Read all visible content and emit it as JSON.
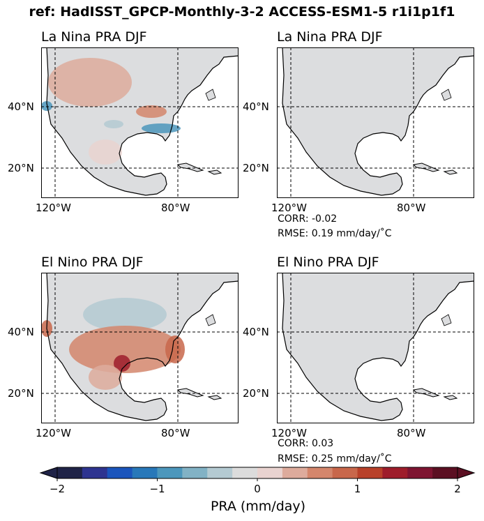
{
  "suptitle": "ref: HadISST_GPCP-Monthly-3-2 ACCESS-ESM1-5 r1i1p1f1",
  "chart_data": [
    {
      "type": "heatmap",
      "title": "La Nina PRA DJF",
      "x_ticks": [
        "120°W",
        "80°W"
      ],
      "y_ticks": [
        "40°N",
        "20°N"
      ],
      "field": "reference",
      "anomalies": [
        {
          "region": "western Canada / northern US",
          "value": 0.3
        },
        {
          "region": "Pacific Northwest coast",
          "value": -1.0
        },
        {
          "region": "lower Mississippi valley",
          "value": 0.6
        },
        {
          "region": "Gulf coast / southeast US",
          "value": -0.9
        },
        {
          "region": "southern Great Plains",
          "value": -0.4
        },
        {
          "region": "northern Mexico",
          "value": 0.1
        }
      ],
      "grid": true
    },
    {
      "type": "heatmap",
      "title": "La Nina PRA DJF",
      "x_ticks": [
        "120°W",
        "80°W"
      ],
      "y_ticks": [
        "40°N",
        "20°N"
      ],
      "field": "model",
      "anomalies": [
        {
          "region": "North America (uniform)",
          "value": 0.0
        }
      ],
      "grid": true,
      "stats": {
        "corr": "CORR: -0.02",
        "rmse": "RMSE: 0.19 mm/day/$^\\circ$C"
      }
    },
    {
      "type": "heatmap",
      "title": "El Nino PRA DJF",
      "x_ticks": [
        "120°W",
        "80°W"
      ],
      "y_ticks": [
        "40°N",
        "20°N"
      ],
      "field": "reference",
      "anomalies": [
        {
          "region": "central US",
          "value": -0.3
        },
        {
          "region": "southern US / Texas",
          "value": 0.7
        },
        {
          "region": "Texas Gulf coast",
          "value": 1.4
        },
        {
          "region": "southeast US coast",
          "value": 0.9
        },
        {
          "region": "California coast",
          "value": 0.8
        },
        {
          "region": "northern Mexico",
          "value": 0.4
        }
      ],
      "grid": true
    },
    {
      "type": "heatmap",
      "title": "El Nino PRA DJF",
      "x_ticks": [
        "120°W",
        "80°W"
      ],
      "y_ticks": [
        "40°N",
        "20°N"
      ],
      "field": "model",
      "anomalies": [
        {
          "region": "North America (uniform)",
          "value": 0.0
        }
      ],
      "grid": true,
      "stats": {
        "corr": "CORR: 0.03",
        "rmse": "RMSE: 0.25 mm/day/$^\\circ$C"
      }
    }
  ],
  "colorbar": {
    "label": "PRA (mm/day)",
    "ticks": [
      "−2",
      "−1",
      "0",
      "1",
      "2"
    ],
    "tick_values": [
      -2,
      -1,
      0,
      1,
      2
    ],
    "colors": [
      "#1f2347",
      "#2e3490",
      "#1b55bc",
      "#2878b9",
      "#4c97bc",
      "#82b2c5",
      "#b4cad2",
      "#dcdcdc",
      "#e9d3d0",
      "#ddab9c",
      "#d4866c",
      "#c8674b",
      "#b8412a",
      "#9e1d2b",
      "#7e1431",
      "#5b0f22"
    ],
    "extend": "both"
  },
  "land_color": "#dcdddf"
}
